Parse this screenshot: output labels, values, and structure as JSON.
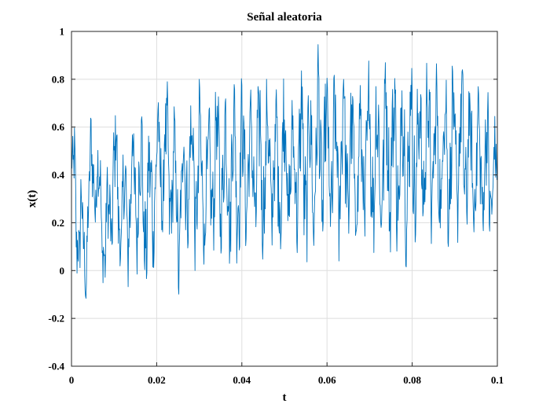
{
  "chart_data": {
    "type": "line",
    "title": "Señal aleatoria",
    "xlabel": "t",
    "ylabel": "x(t)",
    "xlim": [
      0,
      0.1
    ],
    "ylim": [
      -0.4,
      1
    ],
    "xticks": [
      "0",
      "0.02",
      "0.04",
      "0.06",
      "0.08",
      "0.1"
    ],
    "yticks": [
      "-0.4",
      "-0.2",
      "0",
      "0.2",
      "0.4",
      "0.6",
      "0.8",
      "1"
    ],
    "grid": true,
    "series": [
      {
        "color": "#0072BD",
        "x_start": 0,
        "x_step": 0.0001,
        "envelope_points": [
          [
            0.0,
            0.66,
            0.1
          ],
          [
            0.002,
            0.5,
            -0.15
          ],
          [
            0.003,
            0.3,
            -0.23
          ],
          [
            0.005,
            0.75,
            0.2
          ],
          [
            0.007,
            0.5,
            0.0
          ],
          [
            0.008,
            0.35,
            -0.19
          ],
          [
            0.01,
            0.76,
            0.1
          ],
          [
            0.012,
            0.5,
            -0.1
          ],
          [
            0.014,
            0.7,
            -0.05
          ],
          [
            0.016,
            0.72,
            0.0
          ],
          [
            0.018,
            0.6,
            -0.15
          ],
          [
            0.02,
            0.75,
            0.1
          ],
          [
            0.022,
            0.82,
            0.1
          ],
          [
            0.024,
            0.7,
            0.05
          ],
          [
            0.025,
            0.55,
            -0.14
          ],
          [
            0.027,
            0.75,
            0.1
          ],
          [
            0.03,
            0.8,
            -0.05
          ],
          [
            0.032,
            0.65,
            0.05
          ],
          [
            0.034,
            0.8,
            0.1
          ],
          [
            0.036,
            0.75,
            0.05
          ],
          [
            0.038,
            0.85,
            0.0
          ],
          [
            0.04,
            0.8,
            0.05
          ],
          [
            0.042,
            0.75,
            0.15
          ],
          [
            0.044,
            0.86,
            0.0
          ],
          [
            0.046,
            0.8,
            0.1
          ],
          [
            0.048,
            0.75,
            0.05
          ],
          [
            0.05,
            0.88,
            0.05
          ],
          [
            0.052,
            0.7,
            0.1
          ],
          [
            0.054,
            0.9,
            0.05
          ],
          [
            0.056,
            0.85,
            -0.02
          ],
          [
            0.058,
            0.95,
            0.05
          ],
          [
            0.06,
            0.85,
            0.1
          ],
          [
            0.062,
            0.85,
            0.0
          ],
          [
            0.064,
            0.95,
            0.1
          ],
          [
            0.066,
            0.8,
            0.05
          ],
          [
            0.068,
            0.8,
            0.05
          ],
          [
            0.07,
            0.9,
            0.1
          ],
          [
            0.072,
            0.85,
            0.03
          ],
          [
            0.074,
            0.95,
            0.1
          ],
          [
            0.076,
            0.9,
            0.05
          ],
          [
            0.078,
            0.9,
            0.0
          ],
          [
            0.08,
            0.96,
            0.05
          ],
          [
            0.082,
            0.85,
            0.1
          ],
          [
            0.084,
            0.95,
            0.1
          ],
          [
            0.086,
            0.85,
            0.05
          ],
          [
            0.088,
            0.93,
            0.1
          ],
          [
            0.09,
            0.85,
            0.1
          ],
          [
            0.092,
            0.9,
            0.15
          ],
          [
            0.094,
            0.75,
            0.1
          ],
          [
            0.096,
            0.8,
            0.1
          ],
          [
            0.098,
            0.75,
            0.05
          ],
          [
            0.1,
            0.6,
            0.15
          ]
        ]
      }
    ]
  }
}
